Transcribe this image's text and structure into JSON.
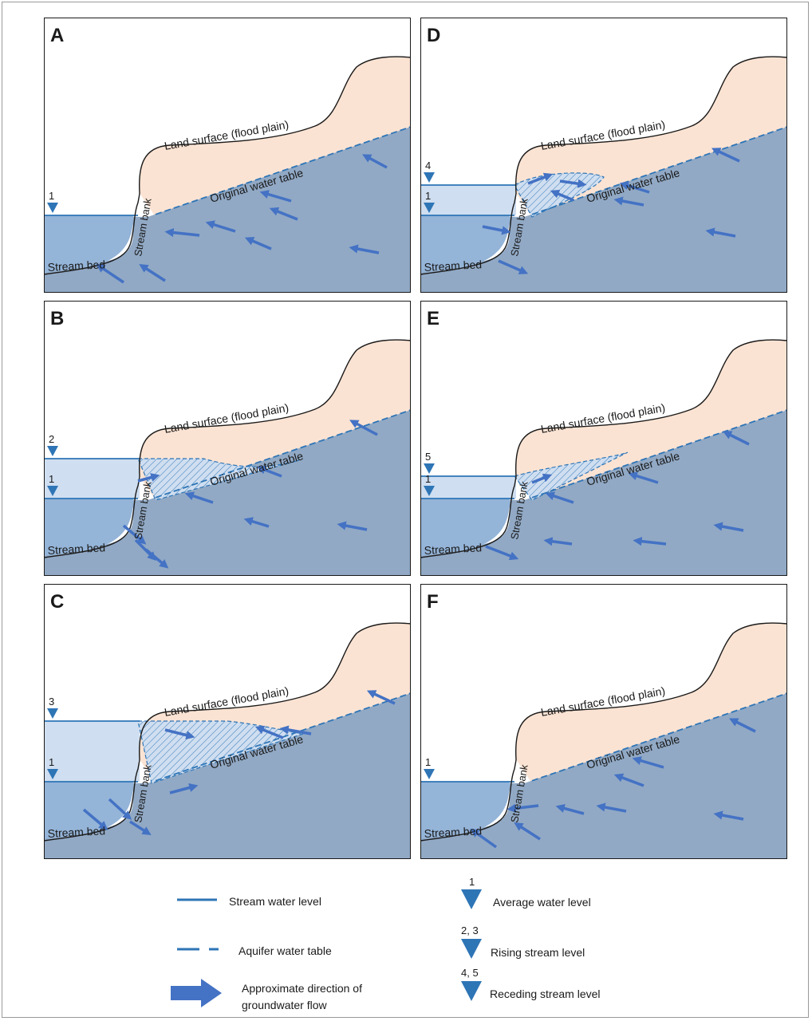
{
  "panels": [
    {
      "id": "A",
      "letter": "A",
      "rise": "none",
      "stream_label": "1",
      "rise_label": "",
      "arrows_kind": "gaining"
    },
    {
      "id": "B",
      "letter": "B",
      "rise": "small",
      "stream_label": "1",
      "rise_label": "2",
      "arrows_kind": "rising"
    },
    {
      "id": "C",
      "letter": "C",
      "rise": "big",
      "stream_label": "1",
      "rise_label": "3",
      "arrows_kind": "rising-high"
    },
    {
      "id": "D",
      "letter": "D",
      "rise": "receding-high",
      "stream_label": "1",
      "rise_label": "4",
      "arrows_kind": "receding"
    },
    {
      "id": "E",
      "letter": "E",
      "rise": "receding-low",
      "stream_label": "1",
      "rise_label": "5",
      "arrows_kind": "receding-low"
    },
    {
      "id": "F",
      "letter": "F",
      "rise": "none",
      "stream_label": "1",
      "rise_label": "",
      "arrows_kind": "gaining"
    }
  ],
  "labels": {
    "land_surface": "Land surface (flood plain)",
    "water_table": "Original water table",
    "stream_bank": "Stream bank",
    "stream_bed": "Stream bed"
  },
  "legend": {
    "stream_water_level": "Stream water level",
    "aquifer_water_table": "Aquifer water table",
    "groundwater_flow_line1": "Approximate direction of",
    "groundwater_flow_line2": "groundwater flow",
    "average_num": "1",
    "average_label": "Average water level",
    "rising_num": "2, 3",
    "rising_label": "Rising stream level",
    "receding_num": "4, 5",
    "receding_label": "Receding stream level"
  },
  "colors": {
    "aquifer": "#91a9c5",
    "land": "#fbe3d3",
    "stream": "#94b4d8",
    "stream_rise": "#cfdef0",
    "line_blue": "#2e75b6",
    "arrow_blue": "#4472c4",
    "marker_blue": "#2e75b6"
  }
}
